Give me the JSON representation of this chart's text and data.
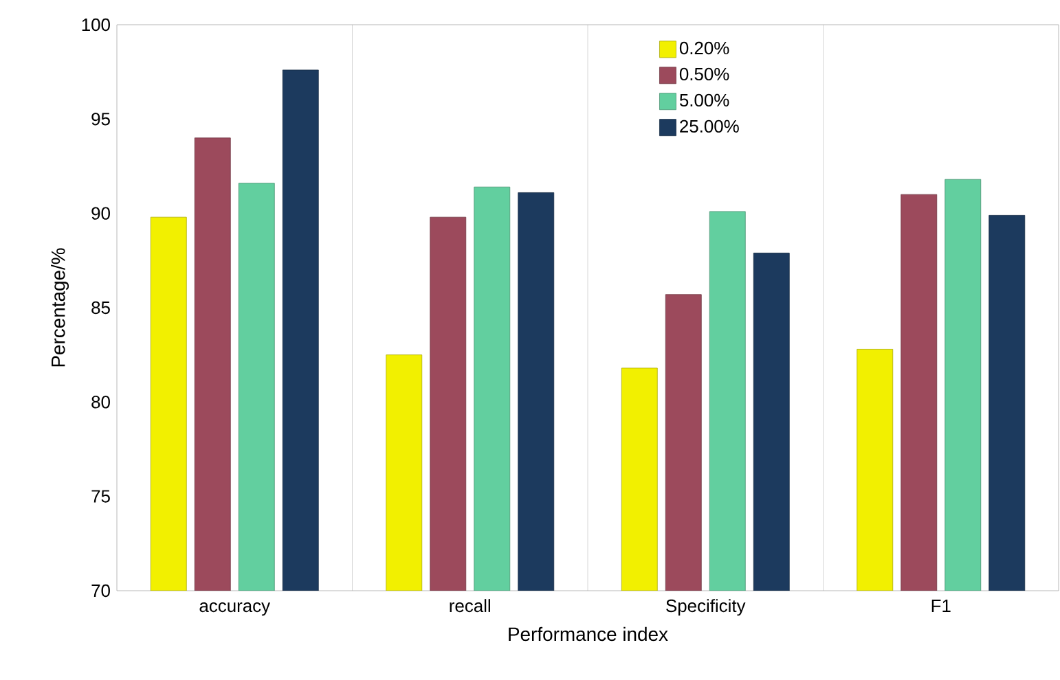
{
  "chart_data": {
    "type": "bar",
    "xlabel": "Performance index",
    "ylabel": "Percentage/%",
    "categories": [
      "accuracy",
      "recall",
      "Specificity",
      "F1"
    ],
    "series": [
      {
        "name": "0.20%",
        "color": "#f2f000",
        "values": [
          89.8,
          82.5,
          81.8,
          82.8
        ]
      },
      {
        "name": "0.50%",
        "color": "#9c4a5c",
        "values": [
          94.0,
          89.8,
          85.7,
          91.0
        ]
      },
      {
        "name": "5.00%",
        "color": "#62cf9f",
        "values": [
          91.6,
          91.4,
          90.1,
          91.8
        ]
      },
      {
        "name": "25.00%",
        "color": "#1c3a5e",
        "values": [
          97.6,
          91.1,
          87.9,
          89.9
        ]
      }
    ],
    "ylim": [
      70,
      100
    ],
    "yticks": [
      70,
      75,
      80,
      85,
      90,
      95,
      100
    ],
    "grid": "x",
    "legend": "top"
  }
}
